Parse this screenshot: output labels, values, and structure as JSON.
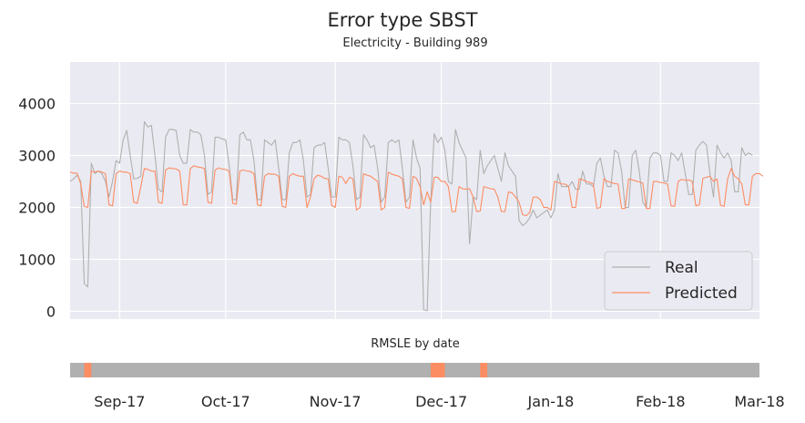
{
  "chart_data": [
    {
      "type": "line",
      "title": "Error type SBST",
      "subtitle": "Electricity - Building 989",
      "xlabel": "",
      "ylabel": "",
      "x_range": [
        "2017-08-18",
        "2018-03-01"
      ],
      "ylim": [
        -150,
        4800
      ],
      "y_ticks": [
        0,
        1000,
        2000,
        3000,
        4000
      ],
      "x_ticks": [
        {
          "date": "2017-09-01",
          "label": "Sep-17"
        },
        {
          "date": "2017-10-01",
          "label": "Oct-17"
        },
        {
          "date": "2017-11-01",
          "label": "Nov-17"
        },
        {
          "date": "2017-12-01",
          "label": "Dec-17"
        },
        {
          "date": "2018-01-01",
          "label": "Jan-18"
        },
        {
          "date": "2018-02-01",
          "label": "Feb-18"
        },
        {
          "date": "2018-03-01",
          "label": "Mar-18"
        }
      ],
      "grid": true,
      "legend_position": "bottom-right",
      "start_date": "2017-08-18",
      "series": [
        {
          "name": "Real",
          "color": "#b0b0b0",
          "values": [
            2500,
            2550,
            2620,
            2500,
            530,
            470,
            2850,
            2650,
            2700,
            2650,
            2500,
            2200,
            2500,
            2900,
            2850,
            3300,
            3480,
            3000,
            2550,
            2560,
            2600,
            3650,
            3550,
            3580,
            3000,
            2350,
            2300,
            3350,
            3500,
            3500,
            3480,
            3000,
            2850,
            2850,
            3500,
            3450,
            3450,
            3400,
            3000,
            2250,
            2300,
            3350,
            3350,
            3320,
            3300,
            2800,
            2150,
            2150,
            3400,
            3450,
            3300,
            3300,
            2900,
            2150,
            2150,
            3300,
            3250,
            3200,
            3300,
            2750,
            2150,
            2150,
            3050,
            3250,
            3250,
            3300,
            2900,
            2200,
            2250,
            3150,
            3200,
            3200,
            3250,
            2750,
            2200,
            2200,
            3350,
            3300,
            3300,
            3250,
            2800,
            2150,
            2200,
            3400,
            3300,
            3150,
            3200,
            2750,
            2100,
            2200,
            3250,
            3300,
            3250,
            3300,
            2750,
            2100,
            2200,
            3300,
            2950,
            2750,
            30,
            10,
            2100,
            3420,
            3250,
            3350,
            3100,
            2500,
            2450,
            3500,
            3250,
            3100,
            2950,
            1300,
            2200,
            2150,
            3100,
            2650,
            2800,
            2900,
            3000,
            2750,
            2500,
            3050,
            2800,
            2700,
            2600,
            1750,
            1650,
            1700,
            1800,
            1950,
            1800,
            1850,
            1900,
            1950,
            1800,
            1950,
            2650,
            2400,
            2400,
            2400,
            2500,
            2350,
            2350,
            2700,
            2450,
            2450,
            2400,
            2850,
            2950,
            2600,
            2400,
            2400,
            3100,
            3050,
            2700,
            2000,
            2000,
            3000,
            3100,
            2700,
            2100,
            2000,
            2950,
            3050,
            3050,
            3000,
            2500,
            2500,
            3050,
            3000,
            2900,
            3050,
            2650,
            2250,
            2250,
            3100,
            3200,
            3270,
            3200,
            2650,
            2200,
            3200,
            3050,
            2950,
            3050,
            2900,
            2300,
            2300,
            3150,
            3000,
            3050,
            3000
          ]
        },
        {
          "name": "Predicted",
          "color": "#fc8d62",
          "values": [
            2680,
            2660,
            2660,
            2450,
            2020,
            2000,
            2700,
            2680,
            2700,
            2680,
            2650,
            2050,
            2030,
            2650,
            2700,
            2680,
            2680,
            2650,
            2100,
            2080,
            2400,
            2750,
            2730,
            2700,
            2700,
            2100,
            2080,
            2720,
            2760,
            2750,
            2740,
            2700,
            2050,
            2050,
            2750,
            2800,
            2780,
            2770,
            2750,
            2100,
            2080,
            2720,
            2760,
            2740,
            2730,
            2700,
            2080,
            2060,
            2700,
            2720,
            2700,
            2690,
            2650,
            2050,
            2030,
            2600,
            2650,
            2640,
            2640,
            2600,
            2020,
            2000,
            2600,
            2650,
            2620,
            2600,
            2600,
            2000,
            2200,
            2550,
            2620,
            2600,
            2560,
            2550,
            2040,
            2000,
            2600,
            2580,
            2460,
            2580,
            2550,
            1950,
            2000,
            2650,
            2620,
            2600,
            2550,
            2500,
            1950,
            2000,
            2680,
            2640,
            2620,
            2600,
            2550,
            2000,
            1980,
            2600,
            2560,
            2400,
            2050,
            2300,
            2100,
            2580,
            2580,
            2500,
            2500,
            2400,
            1920,
            1920,
            2400,
            2360,
            2350,
            2360,
            2200,
            1920,
            1930,
            2400,
            2380,
            2360,
            2350,
            2200,
            1920,
            1920,
            2300,
            2280,
            2200,
            2100,
            1860,
            1840,
            1900,
            2200,
            2200,
            2150,
            2000,
            2000,
            1950,
            2500,
            2480,
            2450,
            2450,
            2400,
            2000,
            2000,
            2550,
            2530,
            2500,
            2480,
            2450,
            1980,
            2000,
            2550,
            2500,
            2480,
            2460,
            2450,
            1980,
            1980,
            2550,
            2530,
            2510,
            2490,
            2470,
            1980,
            1980,
            2500,
            2500,
            2480,
            2470,
            2450,
            2030,
            2020,
            2500,
            2540,
            2520,
            2530,
            2500,
            2030,
            2050,
            2560,
            2580,
            2600,
            2500,
            2550,
            2040,
            2020,
            2550,
            2750,
            2600,
            2550,
            2450,
            2050,
            2050,
            2600,
            2650,
            2650,
            2600
          ]
        }
      ]
    },
    {
      "type": "heatmap",
      "title": "RMSLE by date",
      "base_color": "#b0b0b0",
      "highlight_color": "#fc8d62",
      "highlight_ranges": [
        {
          "start": "2017-08-22",
          "end": "2017-08-24"
        },
        {
          "start": "2017-11-28",
          "end": "2017-12-02"
        },
        {
          "start": "2017-12-12",
          "end": "2017-12-14"
        }
      ]
    }
  ]
}
